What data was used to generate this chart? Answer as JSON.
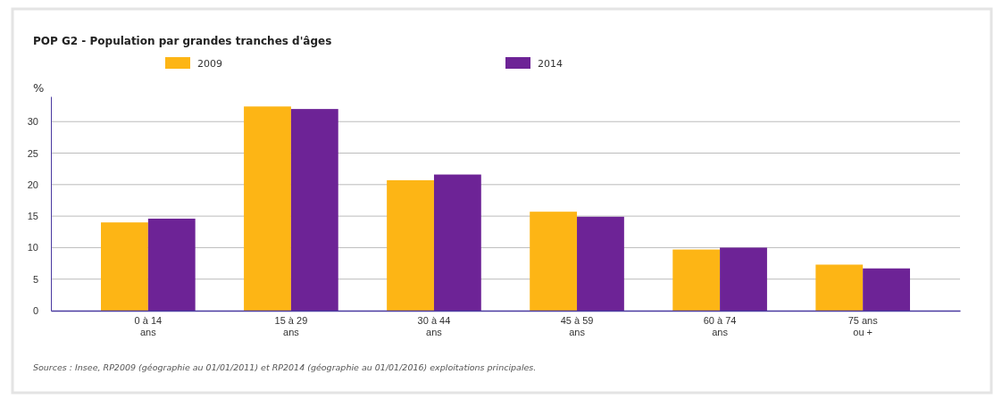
{
  "chart_data": {
    "type": "bar",
    "title": "POP G2 - Population par grandes tranches d'âges",
    "ylabel": "%",
    "categories": [
      "0 à 14\nans",
      "15 à 29\nans",
      "30 à 44\nans",
      "45 à 59\nans",
      "60 à 74\nans",
      "75 ans\nou +"
    ],
    "series": [
      {
        "name": "2009",
        "color": "#fdb515",
        "values": [
          14.0,
          32.4,
          20.7,
          15.7,
          9.7,
          7.3
        ]
      },
      {
        "name": "2014",
        "color": "#6d2396",
        "values": [
          14.6,
          32.0,
          21.6,
          14.9,
          10.0,
          6.7
        ]
      }
    ],
    "ylim": [
      0,
      34
    ],
    "yticks": [
      0,
      5,
      10,
      15,
      20,
      25,
      30
    ],
    "grid": "y",
    "legend": "top",
    "annotations": [
      "Sources : Insee, RP2009 (géographie au 01/01/2011) et RP2014 (géographie au 01/01/2016) exploitations principales."
    ]
  }
}
